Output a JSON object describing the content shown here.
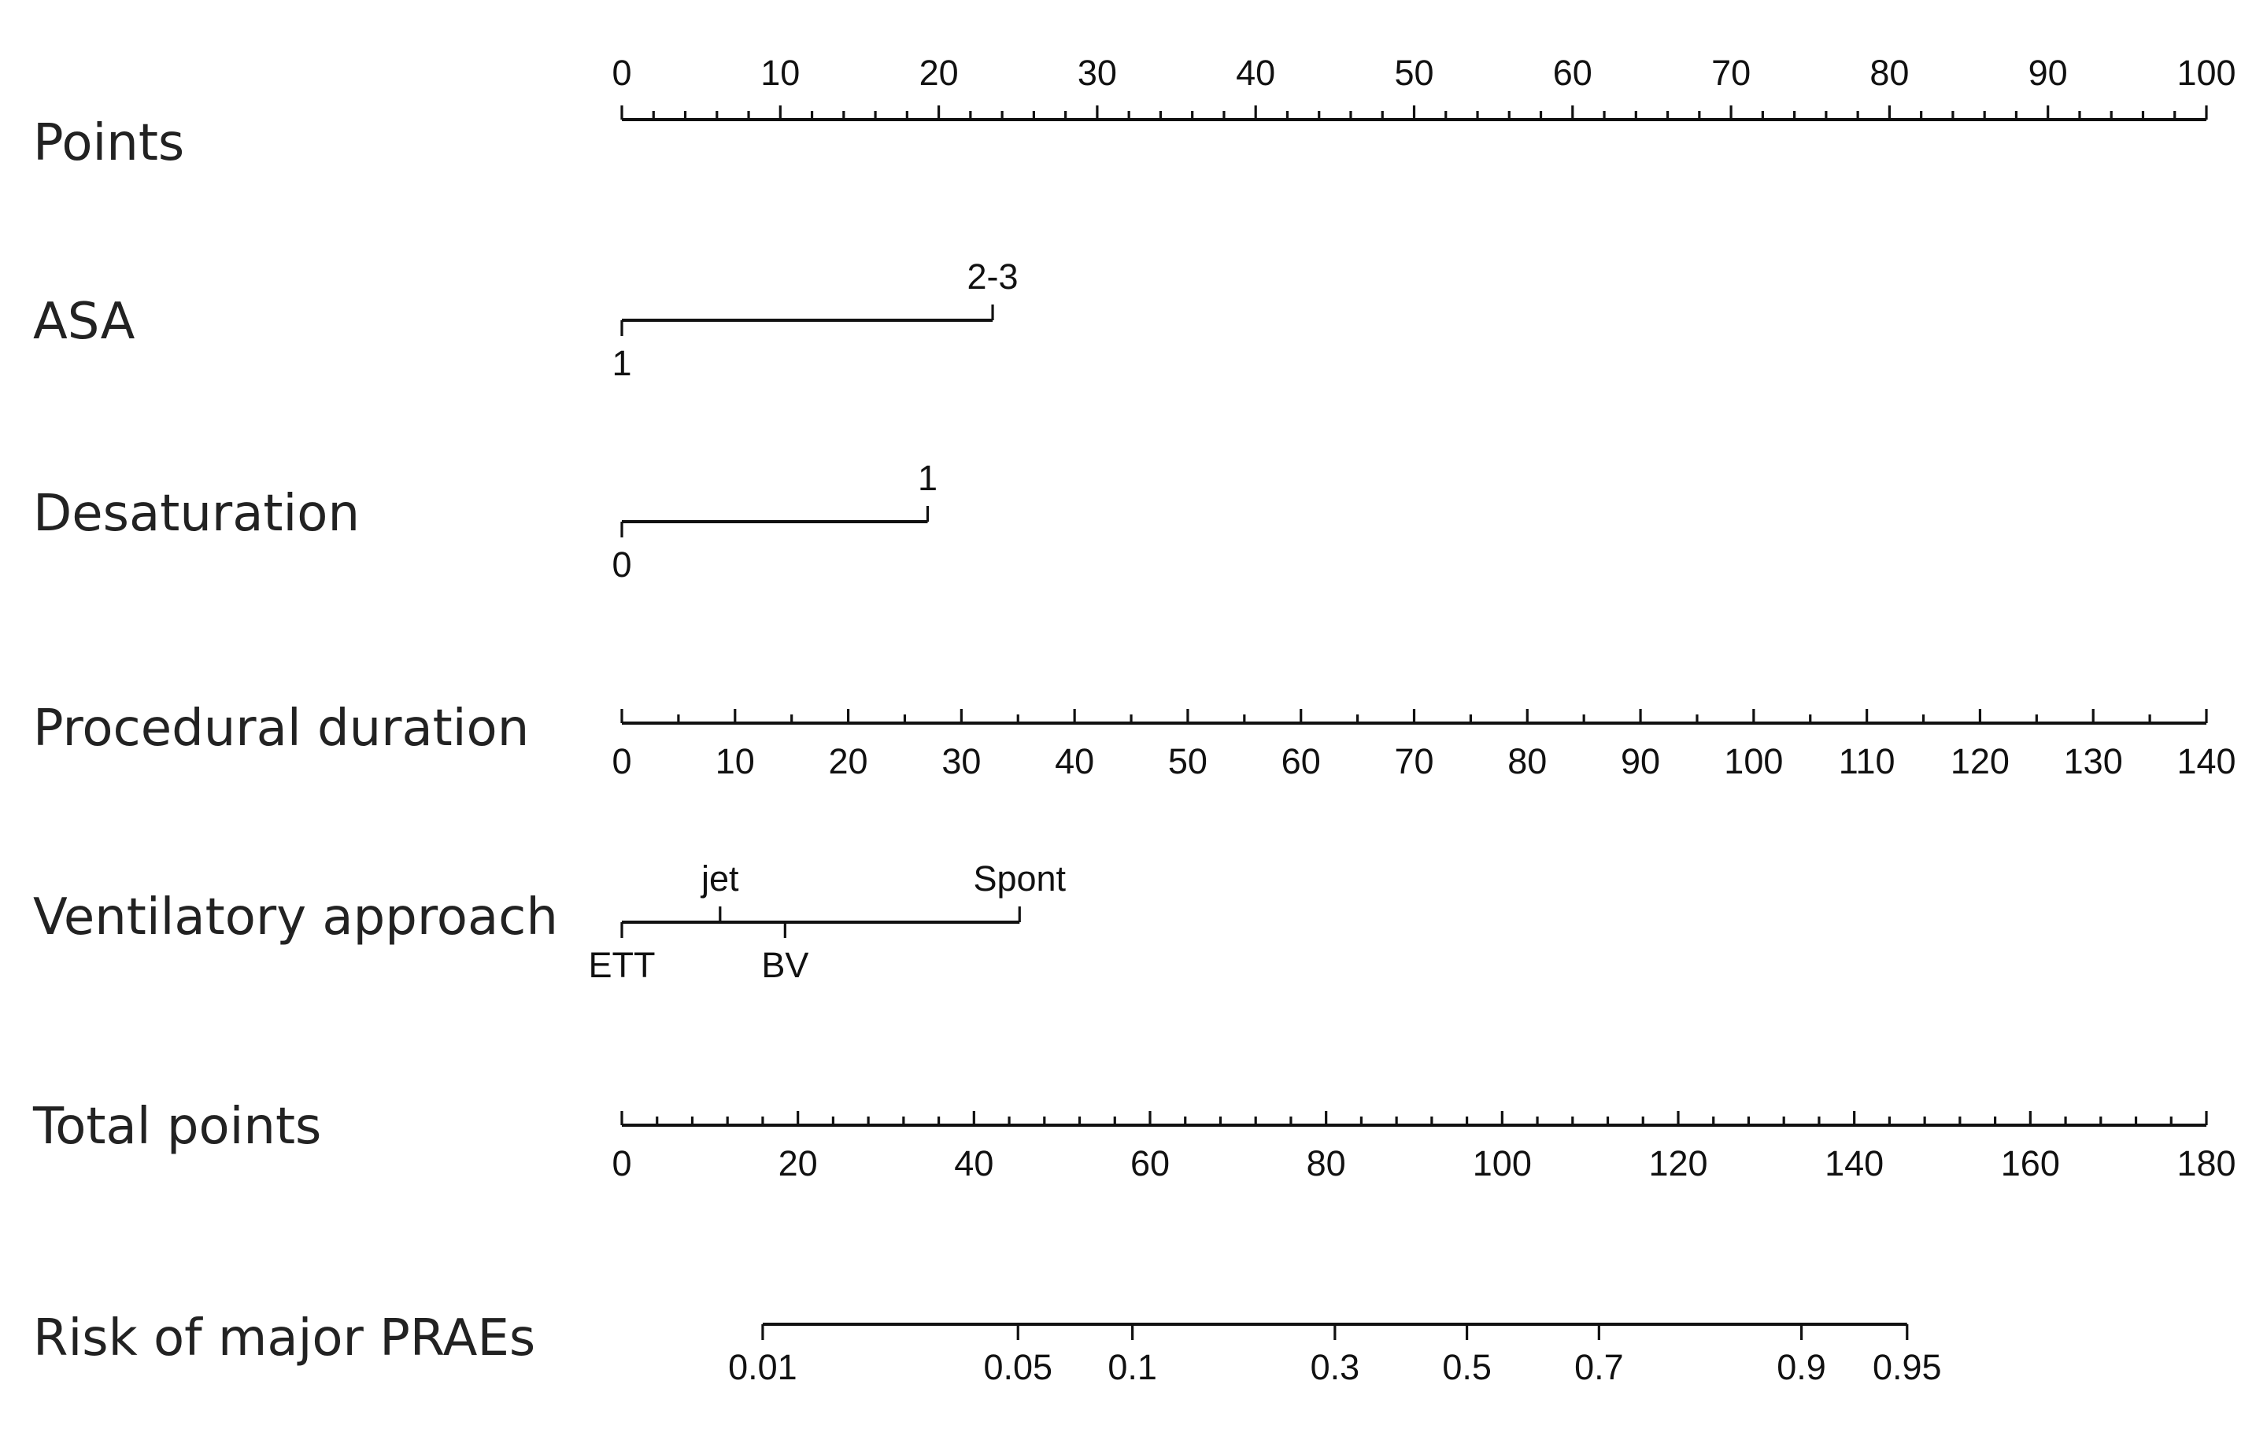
{
  "chart_data": {
    "type": "nomogram",
    "title": "",
    "rows": [
      {
        "key": "points",
        "label": "Points",
        "kind": "scale",
        "min": 0,
        "max": 100,
        "labels": [
          "0",
          "10",
          "20",
          "30",
          "40",
          "50",
          "60",
          "70",
          "80",
          "90",
          "100"
        ],
        "label_values": [
          0,
          10,
          20,
          30,
          40,
          50,
          60,
          70,
          80,
          90,
          100
        ],
        "minor_step": 2,
        "label_side": "above"
      },
      {
        "key": "asa",
        "label": "ASA",
        "kind": "categorical",
        "levels": [
          {
            "text": "1",
            "points": 0,
            "side": "below"
          },
          {
            "text": "2-3",
            "points": 23.4,
            "side": "above"
          }
        ]
      },
      {
        "key": "desaturation",
        "label": "Desaturation",
        "kind": "categorical",
        "levels": [
          {
            "text": "0",
            "points": 0,
            "side": "below"
          },
          {
            "text": "1",
            "points": 19.3,
            "side": "above"
          }
        ]
      },
      {
        "key": "procedural_duration",
        "label": "Procedural duration",
        "kind": "scale",
        "min": 0,
        "max": 140,
        "labels": [
          "0",
          "10",
          "20",
          "30",
          "40",
          "50",
          "60",
          "70",
          "80",
          "90",
          "100",
          "110",
          "120",
          "130",
          "140"
        ],
        "label_values": [
          0,
          10,
          20,
          30,
          40,
          50,
          60,
          70,
          80,
          90,
          100,
          110,
          120,
          130,
          140
        ],
        "minor_step": 5,
        "label_side": "below"
      },
      {
        "key": "ventilatory_approach",
        "label": "Ventilatory approach",
        "kind": "categorical",
        "levels": [
          {
            "text": "ETT",
            "points": 0,
            "side": "below"
          },
          {
            "text": "jet",
            "points": 6.2,
            "side": "above"
          },
          {
            "text": "BV",
            "points": 10.3,
            "side": "below"
          },
          {
            "text": "Spont",
            "points": 25.1,
            "side": "above"
          }
        ]
      },
      {
        "key": "total_points",
        "label": "Total points",
        "kind": "scale",
        "min": 0,
        "max": 180,
        "labels": [
          "0",
          "20",
          "40",
          "60",
          "80",
          "100",
          "120",
          "140",
          "160",
          "180"
        ],
        "label_values": [
          0,
          20,
          40,
          60,
          80,
          100,
          120,
          140,
          160,
          180
        ],
        "minor_step": 4,
        "label_side": "below"
      },
      {
        "key": "risk",
        "label": "Risk of major PRAEs",
        "kind": "probability",
        "labels": [
          "0.01",
          "0.05",
          "0.1",
          "0.3",
          "0.5",
          "0.7",
          "0.9",
          "0.95"
        ],
        "label_values": [
          0.01,
          0.05,
          0.1,
          0.3,
          0.5,
          0.7,
          0.9,
          0.95
        ],
        "total_points_at": [
          16,
          45,
          58,
          81,
          96,
          111,
          134,
          146
        ],
        "label_side": "below"
      }
    ]
  }
}
